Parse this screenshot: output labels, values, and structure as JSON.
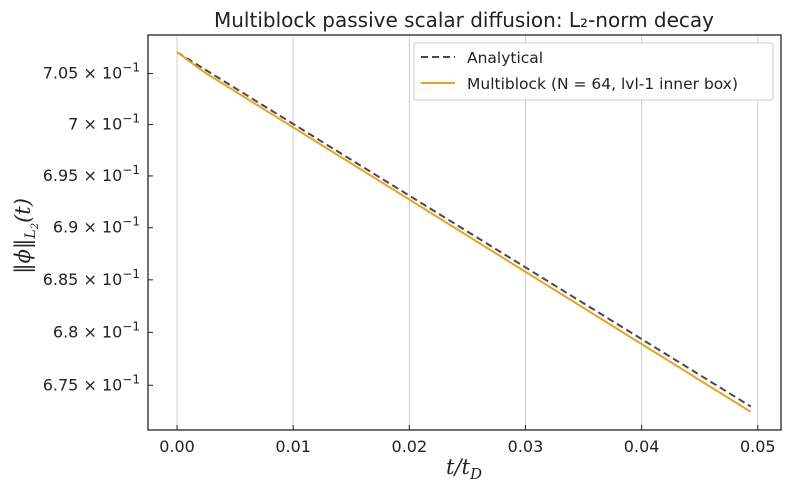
{
  "chart_data": {
    "type": "line",
    "title": "Multiblock passive scalar diffusion: L₂-norm decay",
    "xlabel": "t/t_D",
    "ylabel": "‖ϕ‖_L₂(t)",
    "xlim": [
      -0.0025,
      0.052
    ],
    "ylim": [
      0.6708,
      0.7088
    ],
    "y_scale": "log",
    "x_ticks": [
      0.0,
      0.01,
      0.02,
      0.03,
      0.04,
      0.05
    ],
    "x_tick_labels": [
      "0.00",
      "0.01",
      "0.02",
      "0.03",
      "0.04",
      "0.05"
    ],
    "y_ticks": [
      0.675,
      0.68,
      0.685,
      0.69,
      0.695,
      0.7,
      0.705
    ],
    "y_tick_mantissas": [
      "6.75",
      "6.8",
      "6.85",
      "6.9",
      "6.95",
      "7",
      "7.05"
    ],
    "y_tick_base": "10",
    "y_tick_exponent": "−1",
    "grid": "vertical",
    "legend_position": "top-right",
    "series": [
      {
        "name": "Analytical",
        "color": "#444a55",
        "style": "dashed",
        "x": [
          0.0,
          0.0494
        ],
        "y": [
          0.7071,
          0.673
        ]
      },
      {
        "name": "Multiblock (N = 64, lvl-1 inner box)",
        "color": "#e8a322",
        "style": "solid",
        "x": [
          0.0,
          0.0024,
          0.0494
        ],
        "y": [
          0.7071,
          0.7051,
          0.6725
        ]
      }
    ]
  }
}
